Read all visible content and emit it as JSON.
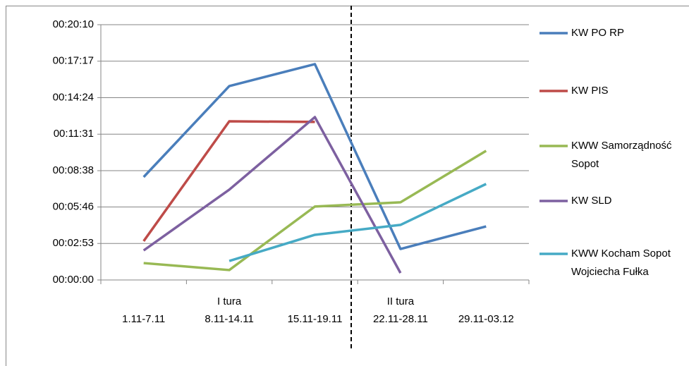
{
  "chart_data": {
    "type": "line",
    "categories": [
      "1.11-7.11",
      "8.11-14.11",
      "15.11-19.11",
      "22.11-28.11",
      "29.11-03.12"
    ],
    "annotations": [
      "I tura",
      "II tura"
    ],
    "ylim": [
      0,
      1210
    ],
    "yticks": [
      {
        "value": 0,
        "label": "00:00:00"
      },
      {
        "value": 173,
        "label": "00:02:53"
      },
      {
        "value": 346,
        "label": "00:05:46"
      },
      {
        "value": 518,
        "label": "00:08:38"
      },
      {
        "value": 691,
        "label": "00:11:31"
      },
      {
        "value": 864,
        "label": "00:14:24"
      },
      {
        "value": 1037,
        "label": "00:17:17"
      },
      {
        "value": 1210,
        "label": "00:20:10"
      }
    ],
    "grid": true,
    "legend": "right",
    "series": [
      {
        "name": "KW PO RP",
        "color": "#4a7ebb",
        "values": [
          488,
          919,
          1023,
          147,
          254
        ]
      },
      {
        "name": "KW PIS",
        "color": "#be4b48",
        "values": [
          184,
          752,
          749,
          null,
          null
        ]
      },
      {
        "name": "KWW Samorządność Sopot",
        "color": "#98b954",
        "values": [
          80,
          47,
          348,
          368,
          612
        ]
      },
      {
        "name": "KW SLD",
        "color": "#7d60a0",
        "values": [
          140,
          428,
          772,
          33,
          null
        ]
      },
      {
        "name": "KWW Kocham Sopot Wojciecha Fułka",
        "color": "#46aac5",
        "values": [
          null,
          90,
          214,
          261,
          455
        ]
      }
    ]
  }
}
